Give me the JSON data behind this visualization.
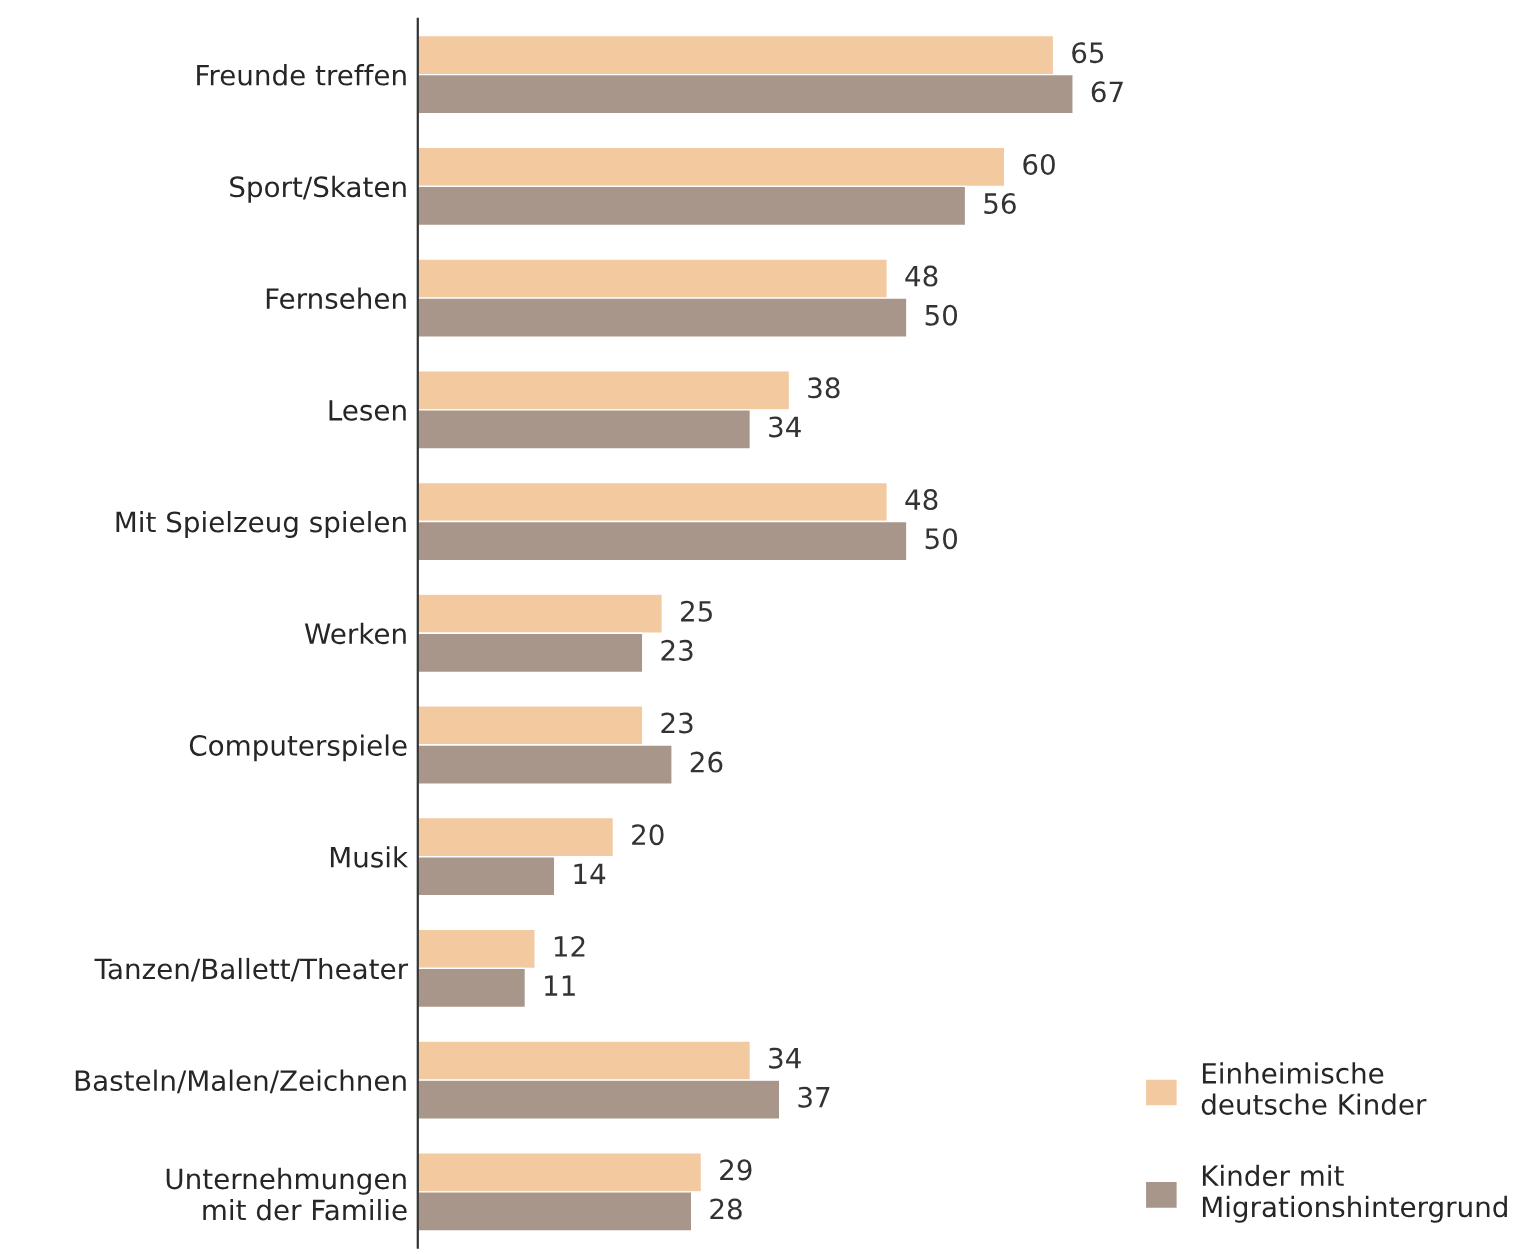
{
  "chart_data": {
    "type": "bar",
    "orientation": "horizontal",
    "data_labels": true,
    "legend": "bottom right",
    "grid": false,
    "categories": [
      "Freunde treffen",
      "Sport/Skaten",
      "Fernsehen",
      "Lesen",
      "Mit Spielzeug spielen",
      "Werken",
      "Computerspiele",
      "Musik",
      "Tanzen/Ballett/Theater",
      "Basteln/Malen/Zeichnen",
      "Unternehmungen\nmit der Familie"
    ],
    "series": [
      {
        "name": "Einheimische\ndeutsche Kinder",
        "color": "#f3c9a0",
        "values": [
          65,
          60,
          48,
          38,
          48,
          25,
          23,
          20,
          12,
          34,
          29
        ]
      },
      {
        "name": "Kinder mit\nMigrationshintergrund",
        "color": "#a8968a",
        "values": [
          67,
          56,
          50,
          34,
          50,
          23,
          26,
          14,
          11,
          37,
          28
        ]
      }
    ]
  }
}
